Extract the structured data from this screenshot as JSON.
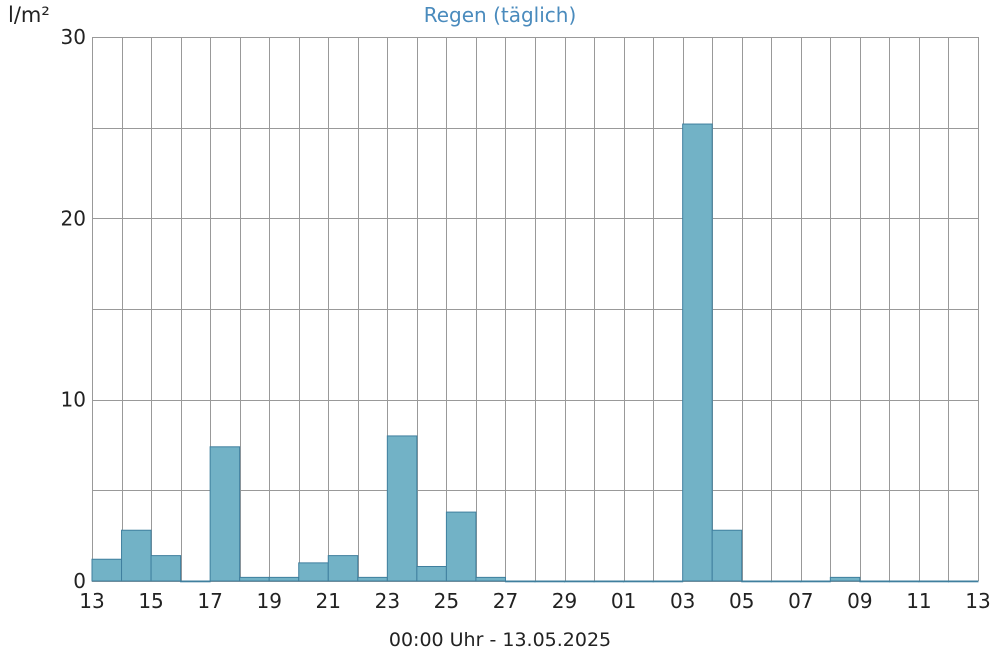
{
  "chart_data": {
    "type": "bar",
    "title": "Regen (täglich)",
    "ylabel": "l/m²",
    "xlabel": "00:00 Uhr - 13.05.2025",
    "ylim": [
      0,
      30
    ],
    "yticks": [
      "0",
      "10",
      "20",
      "30"
    ],
    "xtick_labels": [
      "13",
      "15",
      "17",
      "19",
      "21",
      "23",
      "25",
      "27",
      "29",
      "01",
      "03",
      "05",
      "07",
      "09",
      "11",
      "13"
    ],
    "categories": [
      "13",
      "14",
      "15",
      "16",
      "17",
      "18",
      "19",
      "20",
      "21",
      "22",
      "23",
      "24",
      "25",
      "26",
      "27",
      "28",
      "29",
      "30",
      "01",
      "02",
      "03",
      "04",
      "05",
      "06",
      "07",
      "08",
      "09",
      "10",
      "11",
      "12"
    ],
    "values": [
      1.2,
      2.8,
      1.4,
      0,
      7.4,
      0.2,
      0.2,
      1.0,
      1.4,
      0.2,
      8.0,
      0.8,
      3.8,
      0.2,
      0,
      0,
      0,
      0,
      0,
      0,
      25.2,
      2.8,
      0,
      0,
      0,
      0.2,
      0,
      0,
      0,
      0
    ],
    "grid": true,
    "colors": {
      "bar_fill": "#72b2c6",
      "bar_stroke": "#3f7f9e",
      "title": "#4a8bbd"
    }
  }
}
